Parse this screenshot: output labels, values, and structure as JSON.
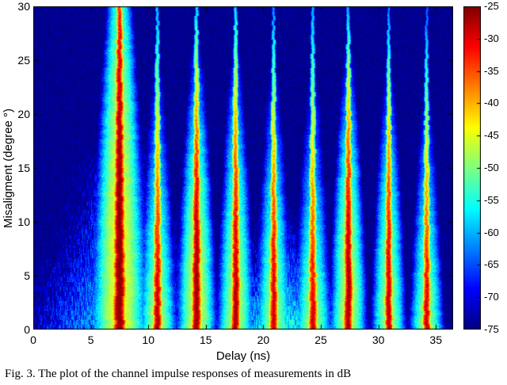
{
  "figure": {
    "caption": "Fig. 3.   The plot of the channel impulse responses of measurements in dB"
  },
  "chart_data": {
    "type": "heatmap",
    "title": "",
    "xlabel": "Delay (ns)",
    "ylabel": "Misaligment (degree °)",
    "xlim": [
      0,
      36.5
    ],
    "ylim": [
      0,
      30
    ],
    "x_ticks": [
      0,
      5,
      10,
      15,
      20,
      25,
      30,
      35
    ],
    "y_ticks": [
      0,
      5,
      10,
      15,
      20,
      25,
      30
    ],
    "colormap": "jet",
    "value_unit": "dB",
    "clim": [
      -75,
      -25
    ],
    "colorbar_ticks": [
      -25,
      -30,
      -35,
      -40,
      -45,
      -50,
      -55,
      -60,
      -65,
      -70,
      -75
    ],
    "background_db": -75,
    "multipath_components": [
      {
        "delay_ns": 7.5,
        "peak_db": -25,
        "red_extent_deg": 27,
        "top_db": -33,
        "core_width_ns": 0.6,
        "glow_width_ns": 2.6,
        "glow_drop_db": 20
      },
      {
        "delay_ns": 10.8,
        "peak_db": -27,
        "red_extent_deg": 6,
        "top_db": -60,
        "core_width_ns": 0.45,
        "glow_width_ns": 1.8,
        "glow_drop_db": 20
      },
      {
        "delay_ns": 14.2,
        "peak_db": -26,
        "red_extent_deg": 13,
        "top_db": -58,
        "core_width_ns": 0.46,
        "glow_width_ns": 1.8,
        "glow_drop_db": 20
      },
      {
        "delay_ns": 17.6,
        "peak_db": -27,
        "red_extent_deg": 10,
        "top_db": -58,
        "core_width_ns": 0.44,
        "glow_width_ns": 1.7,
        "glow_drop_db": 20
      },
      {
        "delay_ns": 20.9,
        "peak_db": -28,
        "red_extent_deg": 6,
        "top_db": -62,
        "core_width_ns": 0.42,
        "glow_width_ns": 1.7,
        "glow_drop_db": 20
      },
      {
        "delay_ns": 24.3,
        "peak_db": -28,
        "red_extent_deg": 4,
        "top_db": -60,
        "core_width_ns": 0.44,
        "glow_width_ns": 1.8,
        "glow_drop_db": 20
      },
      {
        "delay_ns": 27.4,
        "peak_db": -27,
        "red_extent_deg": 12,
        "top_db": -60,
        "core_width_ns": 0.44,
        "glow_width_ns": 1.7,
        "glow_drop_db": 20
      },
      {
        "delay_ns": 30.9,
        "peak_db": -28,
        "red_extent_deg": 8,
        "top_db": -63,
        "core_width_ns": 0.4,
        "glow_width_ns": 1.6,
        "glow_drop_db": 20
      },
      {
        "delay_ns": 34.2,
        "peak_db": -28,
        "red_extent_deg": 4,
        "top_db": -64,
        "core_width_ns": 0.4,
        "glow_width_ns": 1.6,
        "glow_drop_db": 20
      }
    ],
    "noise_fans": [
      {
        "center_ns": 7.5,
        "level_db": -56,
        "deg_decay_db": 0.9,
        "ns_decay_db": 2.2
      },
      {
        "center_ns": 21.5,
        "level_db": -54,
        "deg_decay_db": 1.8,
        "ns_decay_db": 2.5
      }
    ],
    "noise_amp_db": 3
  }
}
